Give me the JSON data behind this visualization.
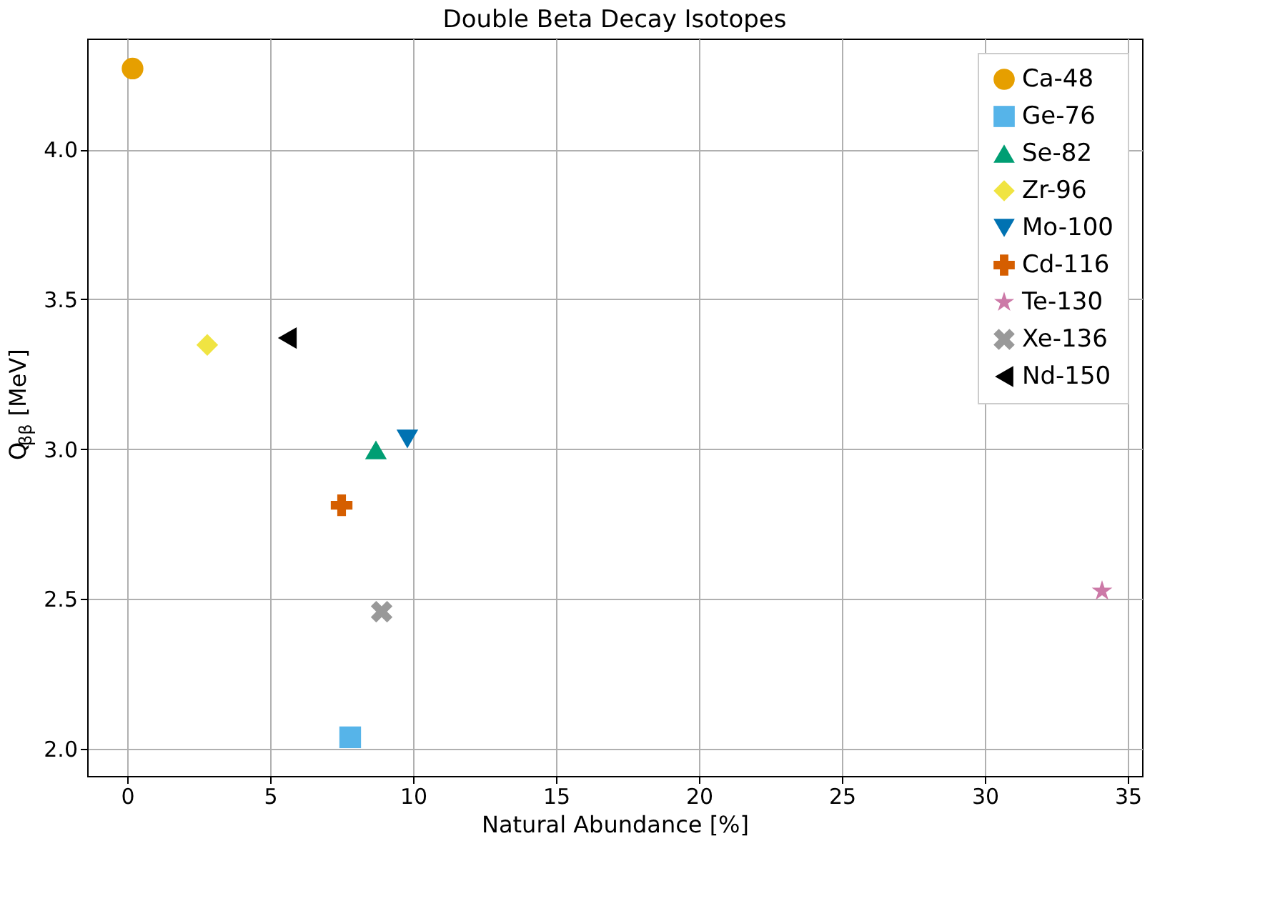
{
  "chart_data": {
    "type": "scatter",
    "title": "Double Beta Decay Isotopes",
    "xlabel": "Natural Abundance [%]",
    "ylabel": "Q$_{ββ}$ [MeV]",
    "xlim": [
      -1.4,
      35.5
    ],
    "ylim": [
      1.91,
      4.37
    ],
    "xticks": [
      0,
      5,
      10,
      15,
      20,
      25,
      30,
      35
    ],
    "yticks": [
      {
        "value": 2,
        "label": "2.0"
      },
      2.5,
      {
        "value": 3,
        "label": "3.0"
      },
      3.5,
      {
        "value": 4,
        "label": "4.0"
      }
    ],
    "grid": true,
    "legend": "top right",
    "series": [
      {
        "name": "Ca-48",
        "color": "#e69f00",
        "marker": "circle",
        "x": [
          0.187
        ],
        "values": [
          4.27
        ]
      },
      {
        "name": "Ge-76",
        "color": "#56b4e9",
        "marker": "square",
        "x": [
          7.8
        ],
        "values": [
          2.039
        ]
      },
      {
        "name": "Se-82",
        "color": "#009e73",
        "marker": "triangle",
        "x": [
          8.7
        ],
        "values": [
          2.998
        ]
      },
      {
        "name": "Zr-96",
        "color": "#f0e442",
        "marker": "diamond",
        "x": [
          2.8
        ],
        "values": [
          3.348
        ]
      },
      {
        "name": "Mo-100",
        "color": "#0072b2",
        "marker": "triangle-down",
        "x": [
          9.8
        ],
        "values": [
          3.034
        ]
      },
      {
        "name": "Cd-116",
        "color": "#d55e00",
        "marker": "cross",
        "x": [
          7.5
        ],
        "values": [
          2.813
        ]
      },
      {
        "name": "Te-130",
        "color": "#cc79a7",
        "marker": "star",
        "x": [
          34.1
        ],
        "values": [
          2.527
        ]
      },
      {
        "name": "Xe-136",
        "color": "#999999",
        "marker": "x",
        "x": [
          8.9
        ],
        "values": [
          2.458
        ]
      },
      {
        "name": "Nd-150",
        "color": "#000000",
        "marker": "triangle-left",
        "x": [
          5.6
        ],
        "values": [
          3.371
        ]
      }
    ]
  }
}
